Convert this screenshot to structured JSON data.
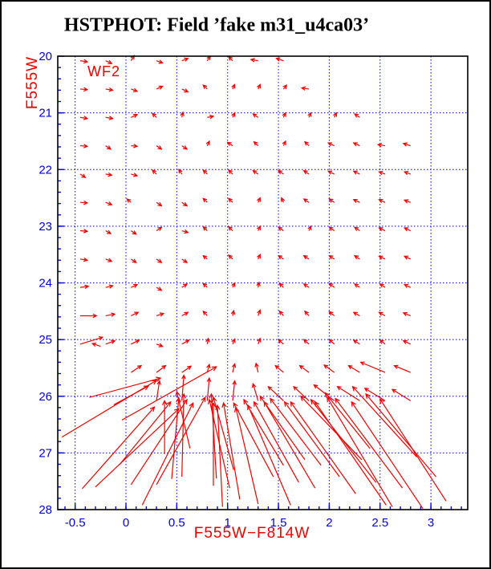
{
  "chart_data": {
    "type": "quiver",
    "title": "HSTPHOT: Field ’fake m31_u4ca03’",
    "xlabel": "F555W−F814W",
    "ylabel": "F555W",
    "annotation": {
      "text": "WF2",
      "x": -0.36,
      "y": 20.25
    },
    "xlim": [
      -0.671,
      3.363
    ],
    "ylim": [
      28,
      20
    ],
    "x_ticks": [
      -0.5,
      0,
      0.5,
      1,
      1.5,
      2,
      2.5,
      3
    ],
    "x_tick_labels": [
      "-0.5",
      "0",
      "0.5",
      "1",
      "1.5",
      "2",
      "2.5",
      "3"
    ],
    "y_ticks": [
      20,
      21,
      22,
      23,
      24,
      25,
      26,
      27,
      28
    ],
    "y_tick_labels": [
      "20",
      "21",
      "22",
      "23",
      "24",
      "25",
      "26",
      "27",
      "28"
    ],
    "x_minor_step": 0.1,
    "y_minor_step": 0.2,
    "grid_style": "dotted",
    "colors": {
      "vector": "#ee0000",
      "axis_label": "#ee0000",
      "tick_label": "#0000dd",
      "grid": "#0000dd",
      "tick": "#0000dd",
      "frame": "#000000",
      "title": "#000000"
    },
    "arrows_small": [
      [
        -0.45,
        20.08,
        0.07,
        0.02
      ],
      [
        -0.2,
        20.08,
        0.06,
        0.05
      ],
      [
        0.05,
        20.08,
        0.03,
        -0.09
      ],
      [
        0.3,
        20.08,
        0.06,
        0.04
      ],
      [
        0.55,
        20.08,
        0.06,
        -0.04
      ],
      [
        0.8,
        20.08,
        0.03,
        -0.08
      ],
      [
        1.05,
        20.08,
        -0.04,
        -0.07
      ],
      [
        1.3,
        20.08,
        -0.07,
        -0.02
      ],
      [
        1.55,
        20.08,
        -0.07,
        -0.04
      ],
      [
        -0.45,
        20.58,
        0.07,
        0.01
      ],
      [
        -0.2,
        20.58,
        0.07,
        0.02
      ],
      [
        0.05,
        20.58,
        0.06,
        0.04
      ],
      [
        0.3,
        20.58,
        0.06,
        -0.05
      ],
      [
        0.55,
        20.58,
        0.06,
        0.05
      ],
      [
        0.8,
        20.58,
        -0.04,
        -0.07
      ],
      [
        1.05,
        20.58,
        0.02,
        -0.08
      ],
      [
        1.3,
        20.58,
        0.02,
        -0.08
      ],
      [
        1.55,
        20.58,
        0.03,
        -0.07
      ],
      [
        1.8,
        20.58,
        -0.07,
        -0.02
      ],
      [
        -0.45,
        21.08,
        0.07,
        0.02
      ],
      [
        -0.2,
        21.08,
        0.07,
        0.02
      ],
      [
        0.05,
        21.08,
        0.06,
        -0.05
      ],
      [
        0.3,
        21.08,
        -0.04,
        -0.07
      ],
      [
        0.55,
        21.08,
        0.01,
        -0.09
      ],
      [
        0.8,
        21.08,
        0.06,
        -0.02
      ],
      [
        1.05,
        21.08,
        0.02,
        -0.08
      ],
      [
        1.3,
        21.08,
        -0.05,
        -0.06
      ],
      [
        1.55,
        21.08,
        0.02,
        -0.08
      ],
      [
        1.8,
        21.08,
        0.02,
        -0.08
      ],
      [
        2.05,
        21.08,
        0.02,
        -0.08
      ],
      [
        2.3,
        21.08,
        -0.05,
        -0.06
      ],
      [
        -0.45,
        21.58,
        0.07,
        0.01
      ],
      [
        -0.2,
        21.58,
        0.05,
        0.06
      ],
      [
        0.05,
        21.58,
        0.06,
        0.01
      ],
      [
        0.3,
        21.58,
        0.05,
        0.06
      ],
      [
        0.55,
        21.58,
        0.05,
        0.06
      ],
      [
        0.8,
        21.58,
        0.02,
        -0.08
      ],
      [
        1.05,
        21.58,
        -0.05,
        -0.06
      ],
      [
        1.3,
        21.58,
        -0.04,
        -0.07
      ],
      [
        1.55,
        21.58,
        0.02,
        -0.08
      ],
      [
        1.8,
        21.58,
        -0.04,
        -0.07
      ],
      [
        2.05,
        21.58,
        -0.06,
        -0.05
      ],
      [
        2.3,
        21.58,
        -0.06,
        -0.05
      ],
      [
        2.55,
        21.58,
        -0.07,
        -0.02
      ],
      [
        2.8,
        21.58,
        -0.07,
        -0.04
      ],
      [
        -0.45,
        22.08,
        0.05,
        0.06
      ],
      [
        -0.2,
        22.08,
        0.06,
        0.02
      ],
      [
        0.05,
        22.08,
        0.06,
        0.03
      ],
      [
        0.3,
        22.08,
        -0.04,
        -0.07
      ],
      [
        0.55,
        22.08,
        -0.03,
        -0.08
      ],
      [
        0.8,
        22.08,
        -0.04,
        -0.07
      ],
      [
        1.05,
        22.08,
        -0.04,
        -0.07
      ],
      [
        1.3,
        22.08,
        -0.05,
        -0.06
      ],
      [
        1.55,
        22.08,
        -0.05,
        -0.06
      ],
      [
        1.8,
        22.08,
        -0.05,
        -0.06
      ],
      [
        2.05,
        22.08,
        -0.06,
        -0.05
      ],
      [
        2.3,
        22.08,
        -0.06,
        -0.05
      ],
      [
        2.55,
        22.08,
        -0.06,
        -0.04
      ],
      [
        2.8,
        22.08,
        -0.06,
        -0.04
      ],
      [
        -0.45,
        22.58,
        0.07,
        0.01
      ],
      [
        -0.2,
        22.58,
        0.06,
        0.04
      ],
      [
        0.05,
        22.58,
        -0.04,
        -0.06
      ],
      [
        0.3,
        22.58,
        0.05,
        0.06
      ],
      [
        0.55,
        22.58,
        0.05,
        0.06
      ],
      [
        0.8,
        22.58,
        -0.04,
        -0.07
      ],
      [
        1.05,
        22.58,
        -0.04,
        -0.07
      ],
      [
        1.3,
        22.58,
        0.02,
        -0.08
      ],
      [
        1.55,
        22.58,
        -0.02,
        -0.08
      ],
      [
        1.8,
        22.58,
        -0.05,
        -0.06
      ],
      [
        2.05,
        22.58,
        -0.05,
        -0.06
      ],
      [
        2.3,
        22.58,
        -0.06,
        -0.05
      ],
      [
        2.55,
        22.58,
        -0.06,
        -0.05
      ],
      [
        2.8,
        22.58,
        -0.06,
        -0.04
      ],
      [
        -0.45,
        23.08,
        0.07,
        0.01
      ],
      [
        -0.2,
        23.08,
        0.05,
        0.05
      ],
      [
        0.05,
        23.08,
        0.05,
        0.06
      ],
      [
        0.3,
        23.08,
        0.05,
        -0.06
      ],
      [
        0.55,
        23.08,
        0.06,
        0.03
      ],
      [
        0.8,
        23.08,
        -0.04,
        -0.07
      ],
      [
        1.05,
        23.08,
        -0.04,
        -0.07
      ],
      [
        1.3,
        23.08,
        0.02,
        -0.08
      ],
      [
        1.55,
        23.08,
        -0.05,
        -0.06
      ],
      [
        1.8,
        23.08,
        0.02,
        -0.08
      ],
      [
        2.05,
        23.08,
        -0.05,
        -0.06
      ],
      [
        2.3,
        23.08,
        -0.05,
        -0.06
      ],
      [
        2.55,
        23.08,
        -0.06,
        -0.05
      ],
      [
        2.8,
        23.08,
        -0.06,
        -0.05
      ],
      [
        -0.45,
        23.58,
        0.07,
        0.02
      ],
      [
        -0.2,
        23.58,
        0.06,
        0.04
      ],
      [
        0.05,
        23.58,
        0.05,
        0.06
      ],
      [
        0.3,
        23.58,
        0.05,
        0.06
      ],
      [
        0.55,
        23.58,
        0.05,
        0.06
      ],
      [
        0.8,
        23.58,
        -0.04,
        -0.06
      ],
      [
        1.05,
        23.58,
        -0.04,
        -0.07
      ],
      [
        1.3,
        23.58,
        0.02,
        -0.08
      ],
      [
        1.55,
        23.58,
        -0.05,
        -0.06
      ],
      [
        1.8,
        23.58,
        -0.05,
        -0.06
      ],
      [
        2.05,
        23.58,
        -0.05,
        -0.06
      ],
      [
        2.3,
        23.58,
        -0.05,
        -0.06
      ],
      [
        2.55,
        23.58,
        -0.06,
        -0.05
      ],
      [
        2.8,
        23.58,
        -0.06,
        -0.05
      ],
      [
        -0.45,
        24.08,
        0.08,
        -0.02
      ],
      [
        -0.2,
        24.08,
        0.07,
        -0.03
      ],
      [
        0.05,
        24.08,
        0.06,
        -0.05
      ],
      [
        0.3,
        24.08,
        0.05,
        0.05
      ],
      [
        0.55,
        24.08,
        0.05,
        -0.06
      ],
      [
        0.8,
        24.08,
        -0.04,
        -0.07
      ],
      [
        1.05,
        24.08,
        0.02,
        -0.08
      ],
      [
        1.3,
        24.08,
        0.01,
        -0.09
      ],
      [
        1.55,
        24.08,
        -0.04,
        -0.07
      ],
      [
        1.8,
        24.08,
        -0.05,
        -0.06
      ],
      [
        2.05,
        24.08,
        -0.05,
        -0.07
      ],
      [
        2.3,
        24.08,
        -0.05,
        -0.06
      ],
      [
        2.55,
        24.08,
        -0.05,
        -0.06
      ],
      [
        2.8,
        24.08,
        -0.06,
        -0.05
      ],
      [
        -0.45,
        24.58,
        0.16,
        0
      ],
      [
        -0.2,
        24.58,
        0.09,
        -0.03
      ],
      [
        0.05,
        24.58,
        0.07,
        -0.06
      ],
      [
        0.3,
        24.58,
        0.07,
        -0.04
      ],
      [
        0.55,
        24.58,
        0.06,
        -0.06
      ],
      [
        0.8,
        24.58,
        -0.04,
        -0.08
      ],
      [
        1.05,
        24.58,
        0.01,
        -0.09
      ],
      [
        1.3,
        24.58,
        0.02,
        -0.1
      ],
      [
        1.55,
        24.58,
        -0.04,
        -0.08
      ],
      [
        1.8,
        24.58,
        -0.04,
        -0.08
      ],
      [
        2.05,
        24.58,
        -0.05,
        -0.07
      ],
      [
        2.3,
        24.58,
        -0.06,
        -0.06
      ],
      [
        2.55,
        24.58,
        -0.06,
        -0.06
      ],
      [
        2.8,
        24.58,
        -0.07,
        -0.05
      ],
      [
        -0.45,
        25.08,
        0.22,
        -0.12
      ],
      [
        -0.25,
        25.12,
        -0.08,
        -0.05
      ],
      [
        -0.2,
        25.08,
        0.09,
        -0.06
      ],
      [
        0.05,
        25.08,
        0.08,
        -0.07
      ],
      [
        0.3,
        25.08,
        0.06,
        0.04
      ],
      [
        0.55,
        25.08,
        0.07,
        -0.07
      ],
      [
        0.8,
        25.08,
        0.01,
        -0.1
      ],
      [
        1.05,
        25.08,
        0.02,
        -0.09
      ],
      [
        1.3,
        25.08,
        0.02,
        -0.1
      ],
      [
        1.55,
        25.08,
        -0.05,
        -0.08
      ],
      [
        1.8,
        25.08,
        -0.05,
        -0.08
      ],
      [
        2.05,
        25.08,
        -0.05,
        -0.08
      ],
      [
        2.3,
        25.08,
        -0.06,
        -0.07
      ],
      [
        2.55,
        25.08,
        -0.05,
        -0.07
      ],
      [
        2.8,
        25.08,
        -0.07,
        -0.06
      ],
      [
        0.05,
        25.58,
        0.1,
        -0.12
      ],
      [
        0.3,
        25.58,
        0.09,
        -0.12
      ],
      [
        0.55,
        25.58,
        0.09,
        -0.11
      ],
      [
        0.8,
        25.58,
        0.02,
        -0.14
      ],
      [
        1.05,
        25.58,
        0.02,
        -0.15
      ],
      [
        1.3,
        25.58,
        -0.02,
        -0.16
      ],
      [
        1.55,
        25.58,
        -0.08,
        -0.12
      ],
      [
        1.8,
        25.58,
        -0.09,
        -0.12
      ],
      [
        2.05,
        25.58,
        -0.1,
        -0.13
      ],
      [
        2.3,
        25.58,
        -0.11,
        -0.12
      ],
      [
        2.55,
        25.58,
        -0.24,
        -0.18
      ],
      [
        2.8,
        25.58,
        -0.16,
        -0.12
      ],
      [
        0.3,
        26.08,
        0.03,
        -0.35
      ],
      [
        0.55,
        26.08,
        0.02,
        -0.45
      ],
      [
        0.8,
        26.08,
        0.02,
        -0.4
      ],
      [
        1.05,
        26.08,
        0.02,
        -0.35
      ],
      [
        1.3,
        26.08,
        -0.05,
        -0.3
      ],
      [
        1.55,
        26.08,
        -0.15,
        -0.25
      ],
      [
        1.8,
        26.08,
        -0.15,
        -0.25
      ],
      [
        2.05,
        26.08,
        -0.2,
        -0.28
      ],
      [
        2.3,
        26.08,
        -0.22,
        -0.25
      ],
      [
        2.55,
        26.08,
        -0.2,
        -0.22
      ],
      [
        2.8,
        26.08,
        -0.18,
        -0.2
      ]
    ],
    "arrows_long": [
      [
        -0.63,
        26.72,
        0.3,
        25.72
      ],
      [
        -0.43,
        27.63,
        0.28,
        26.19
      ],
      [
        -0.3,
        27.6,
        0.52,
        26.22
      ],
      [
        -0.36,
        26.02,
        0.34,
        25.68
      ],
      [
        -0.12,
        26.15,
        0.22,
        25.82
      ],
      [
        -0.04,
        26.42,
        0.89,
        25.48
      ],
      [
        0.05,
        27.56,
        0.6,
        26.06
      ],
      [
        0.16,
        27.92,
        0.66,
        26.12
      ],
      [
        0.3,
        27.56,
        0.78,
        26.02
      ],
      [
        -0.06,
        27.2,
        0.44,
        26.1
      ],
      [
        0.38,
        27.02,
        0.38,
        26.08
      ],
      [
        0.45,
        27.46,
        0.52,
        26.03
      ],
      [
        0.55,
        27.42,
        0.57,
        25.96
      ],
      [
        0.63,
        26.92,
        0.5,
        25.92
      ],
      [
        0.86,
        27.58,
        0.86,
        26.12
      ],
      [
        0.89,
        27.45,
        0.84,
        25.96
      ],
      [
        0.95,
        27.95,
        0.9,
        26.16
      ],
      [
        1.02,
        27.62,
        0.82,
        26.06
      ],
      [
        1.06,
        27.3,
        0.86,
        26.02
      ],
      [
        1.12,
        27.82,
        0.96,
        26.12
      ],
      [
        1.3,
        27.9,
        1.08,
        26.2
      ],
      [
        1.45,
        27.42,
        1.06,
        26.12
      ],
      [
        1.55,
        27.22,
        1.16,
        26.06
      ],
      [
        1.62,
        27.92,
        1.2,
        26.16
      ],
      [
        1.7,
        27.52,
        1.26,
        26.1
      ],
      [
        1.76,
        27.12,
        1.32,
        26
      ],
      [
        1.86,
        27.62,
        1.36,
        26.1
      ],
      [
        1.92,
        27.22,
        1.42,
        26.04
      ],
      [
        2.62,
        27.95,
        1.98,
        26.02
      ],
      [
        2.1,
        27.42,
        1.56,
        26.1
      ],
      [
        2.26,
        27.72,
        1.62,
        26.1
      ],
      [
        2.32,
        27.12,
        1.72,
        26
      ],
      [
        2.46,
        27.52,
        1.82,
        26.06
      ],
      [
        2.56,
        27.92,
        1.86,
        26.1
      ],
      [
        2.86,
        27.07,
        2.23,
        25.83
      ],
      [
        2.72,
        27.62,
        2.06,
        26.04
      ],
      [
        2.92,
        27.98,
        2.22,
        26.1
      ],
      [
        3.05,
        27.42,
        2.36,
        25.96
      ],
      [
        3.15,
        27.85,
        2.5,
        26.05
      ],
      [
        2.4,
        26.92,
        1.96,
        25.94
      ]
    ]
  }
}
